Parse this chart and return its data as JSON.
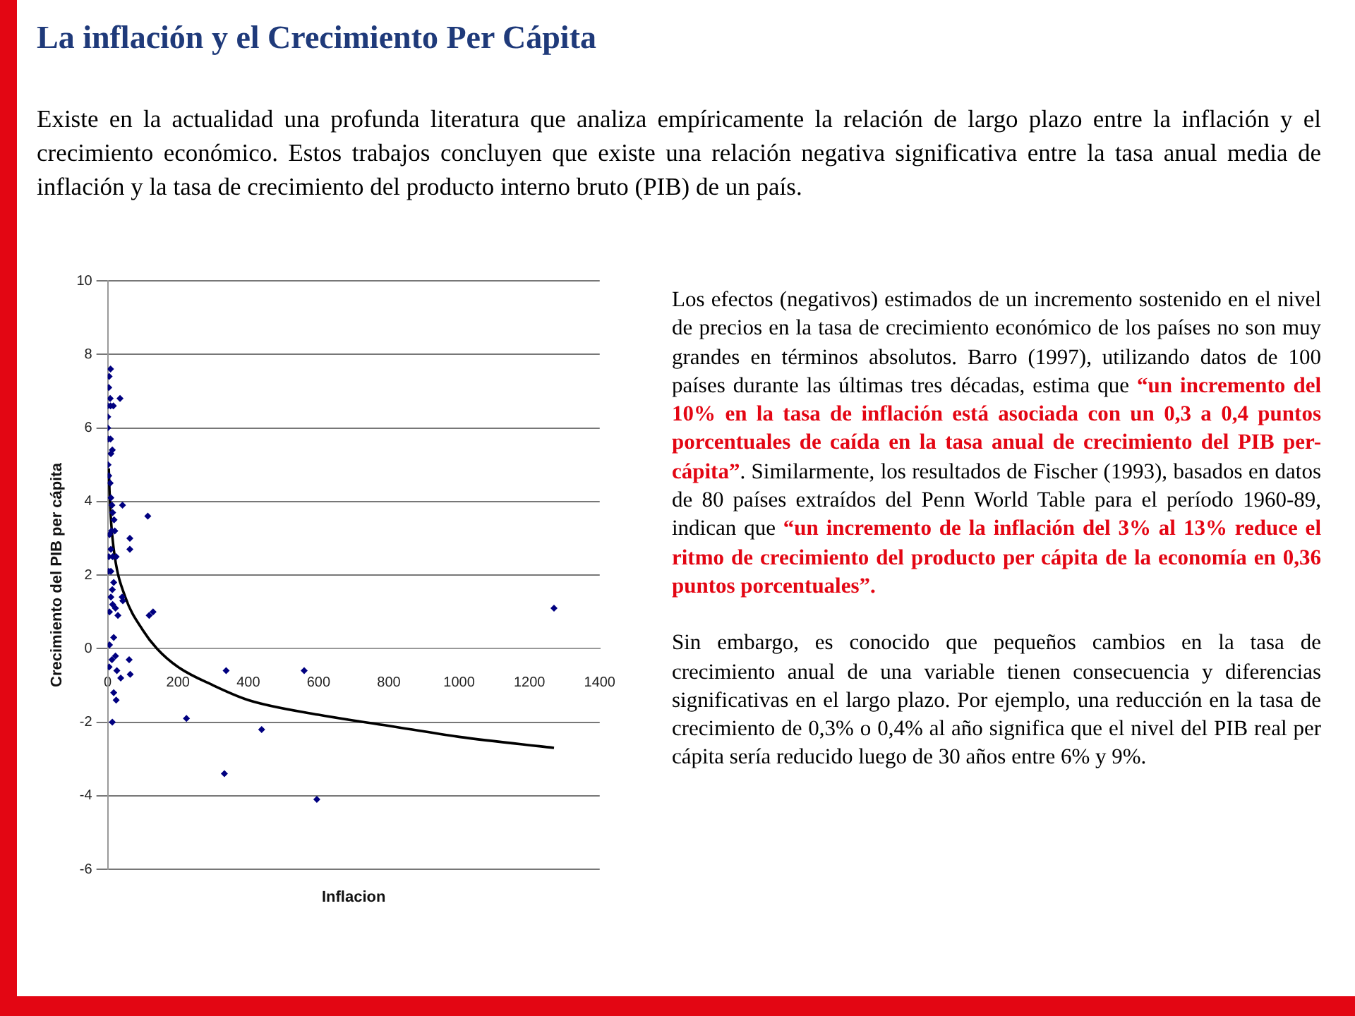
{
  "chart_data": {
    "type": "scatter",
    "title": "La inflación y el Crecimiento Per Cápita",
    "xlabel": "Inflacion",
    "ylabel": "Crecimiento del PIB per cápita",
    "xlim": [
      0,
      1400
    ],
    "xticks": [
      0,
      200,
      400,
      600,
      800,
      1000,
      1200,
      1400
    ],
    "ylim": [
      -6,
      10
    ],
    "yticks": [
      -6,
      -4,
      -2,
      0,
      2,
      4,
      6,
      8,
      10
    ],
    "grid": "y",
    "legend": false,
    "marker": "diamond",
    "series": [
      {
        "type": "scatter",
        "color": "#000080",
        "x": [
          8,
          4,
          3,
          7,
          35,
          0,
          8,
          16,
          0,
          0,
          2,
          8,
          13,
          9,
          1,
          3,
          7,
          9,
          12,
          42,
          14,
          114,
          18,
          11,
          20,
          63,
          5,
          9,
          63,
          14,
          3,
          24,
          3,
          9,
          17,
          13,
          9,
          41,
          43,
          5,
          14,
          22,
          29,
          118,
          129,
          17,
          5,
          12,
          22,
          61,
          4,
          26,
          64,
          37,
          17,
          24,
          13,
          224,
          337,
          559,
          332,
          438,
          595,
          1270
        ],
        "values": [
          7.6,
          7.4,
          7.1,
          6.8,
          6.8,
          6.6,
          6.6,
          6.6,
          6.3,
          6.0,
          5.7,
          5.7,
          5.4,
          5.3,
          5.0,
          4.7,
          4.5,
          4.1,
          3.9,
          3.9,
          3.7,
          3.6,
          3.5,
          3.2,
          3.2,
          3.0,
          3.1,
          2.7,
          2.7,
          2.5,
          2.5,
          2.5,
          2.1,
          2.1,
          1.8,
          1.6,
          1.4,
          1.4,
          1.3,
          1.0,
          1.2,
          1.1,
          0.9,
          0.9,
          1.0,
          0.3,
          0.1,
          -0.3,
          -0.2,
          -0.3,
          -0.5,
          -0.6,
          -0.7,
          -0.8,
          -1.2,
          -1.4,
          -2.0,
          -1.9,
          -0.6,
          -0.6,
          -3.4,
          -2.2,
          -4.1,
          1.1
        ]
      },
      {
        "type": "line",
        "color": "#000000",
        "marker": "none",
        "x": [
          3,
          5,
          10,
          20,
          50,
          100,
          140,
          200,
          300,
          400,
          600,
          800,
          1000,
          1270
        ],
        "values": [
          4.9,
          4.3,
          3.4,
          2.5,
          1.4,
          0.5,
          0.0,
          -0.5,
          -1.0,
          -1.4,
          -1.8,
          -2.1,
          -2.4,
          -2.7
        ]
      }
    ],
    "annotations": [
      "Existe en la actualidad una profunda literatura que analiza empíricamente la relación de largo plazo entre la inflación y el crecimiento económico. Estos trabajos concluyen que existe una relación negativa significativa entre la tasa anual media de inflación y la tasa de crecimiento del producto interno bruto (PIB) de un país.",
      "Los efectos (negativos) estimados de un incremento sostenido en el nivel de precios en la tasa de crecimiento económico de los países no son muy grandes en términos absolutos. Barro (1997), utilizando datos de 100 países durante las últimas tres décadas, estima que ",
      "“un incremento del 10% en la tasa de inflación está asociada con un 0,3 a 0,4 puntos porcentuales de caída en la tasa anual de crecimiento del PIB per-cápita”",
      ". Similarmente, los resultados de Fischer (1993), basados en datos de 80 países extraídos del Penn World Table para el período 1960-89, indican que ",
      "“un incremento de la inflación del 3% al 13% reduce el ritmo de crecimiento del producto per cápita de la economía en 0,36 puntos porcentuales”.",
      "Sin embargo, es conocido que pequeños cambios en la tasa de crecimiento anual de una variable tienen consecuencia y diferencias significativas en el largo plazo. Por ejemplo, una reducción en la tasa de crecimiento de 0,3% o 0,4% al año significa que el nivel del PIB real per cápita sería reducido luego de 30 años entre 6% y 9%."
    ]
  }
}
